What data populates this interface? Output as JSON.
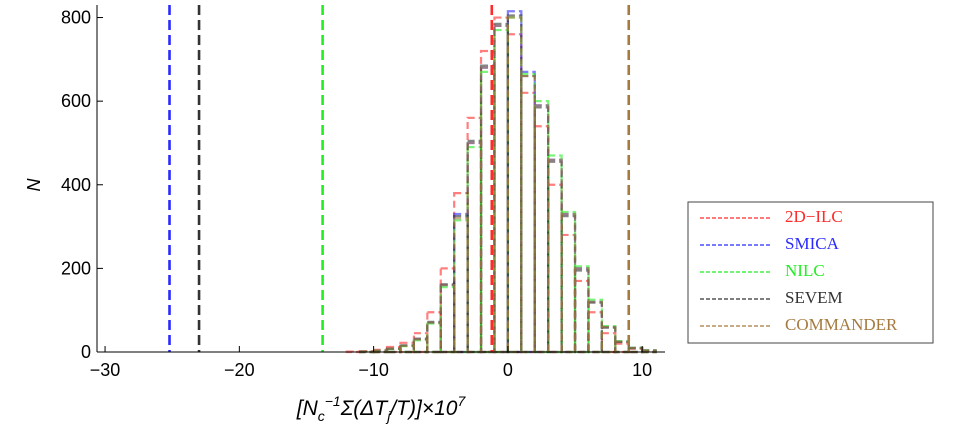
{
  "chart_data": {
    "type": "histogram",
    "xlabel": [
      {
        "text": "[N",
        "shift": "base"
      },
      {
        "text": "c",
        "shift": "sub"
      },
      {
        "text": "−1",
        "shift": "sup"
      },
      {
        "text": "Σ(ΔT",
        "shift": "base"
      },
      {
        "text": "j",
        "shift": "sub"
      },
      {
        "text": "/T)]×10",
        "shift": "base"
      },
      {
        "text": "7",
        "shift": "sup"
      }
    ],
    "ylabel": "N",
    "xlim": [
      -30.6,
      11.7
    ],
    "ylim": [
      0,
      830
    ],
    "xticks": [
      {
        "value": -30,
        "label": "−30"
      },
      {
        "value": -20,
        "label": "−20"
      },
      {
        "value": -10,
        "label": "−10"
      },
      0,
      10
    ],
    "yticks": [
      0,
      200,
      400,
      600,
      800
    ],
    "bins": [
      -12,
      -11,
      -10,
      -9,
      -8,
      -7,
      -6,
      -5,
      -4,
      -3,
      -2,
      -1,
      0,
      1,
      2,
      3,
      4,
      5,
      6,
      7,
      8,
      9,
      10,
      11
    ],
    "series": [
      {
        "name": "2D−ILC",
        "color": "#ff2a2a",
        "observed": -1.2,
        "values": [
          1,
          2,
          5,
          12,
          22,
          45,
          95,
          200,
          380,
          560,
          720,
          800,
          760,
          620,
          540,
          400,
          280,
          170,
          95,
          45,
          20,
          8,
          3
        ]
      },
      {
        "name": "SMICA",
        "color": "#2a2aff",
        "observed": -25.2,
        "values": [
          0,
          1,
          3,
          8,
          15,
          30,
          70,
          160,
          330,
          500,
          680,
          780,
          815,
          670,
          590,
          460,
          330,
          200,
          120,
          60,
          25,
          10,
          4
        ]
      },
      {
        "name": "NILC",
        "color": "#22ee22",
        "observed": -13.8,
        "values": [
          0,
          1,
          3,
          7,
          14,
          28,
          68,
          155,
          315,
          490,
          670,
          770,
          800,
          665,
          600,
          470,
          335,
          205,
          125,
          62,
          26,
          10,
          4
        ]
      },
      {
        "name": "SEVEM",
        "color": "#333333",
        "observed": -23,
        "values": [
          0,
          1,
          3,
          8,
          16,
          32,
          72,
          162,
          325,
          505,
          685,
          785,
          805,
          660,
          585,
          455,
          325,
          195,
          118,
          58,
          24,
          9,
          3
        ]
      },
      {
        "name": "COMMANDER",
        "color": "#a57a3f",
        "observed": 9,
        "values": [
          0,
          1,
          3,
          8,
          15,
          30,
          70,
          160,
          320,
          500,
          680,
          780,
          800,
          660,
          590,
          460,
          330,
          200,
          120,
          60,
          25,
          10,
          4
        ]
      }
    ]
  }
}
